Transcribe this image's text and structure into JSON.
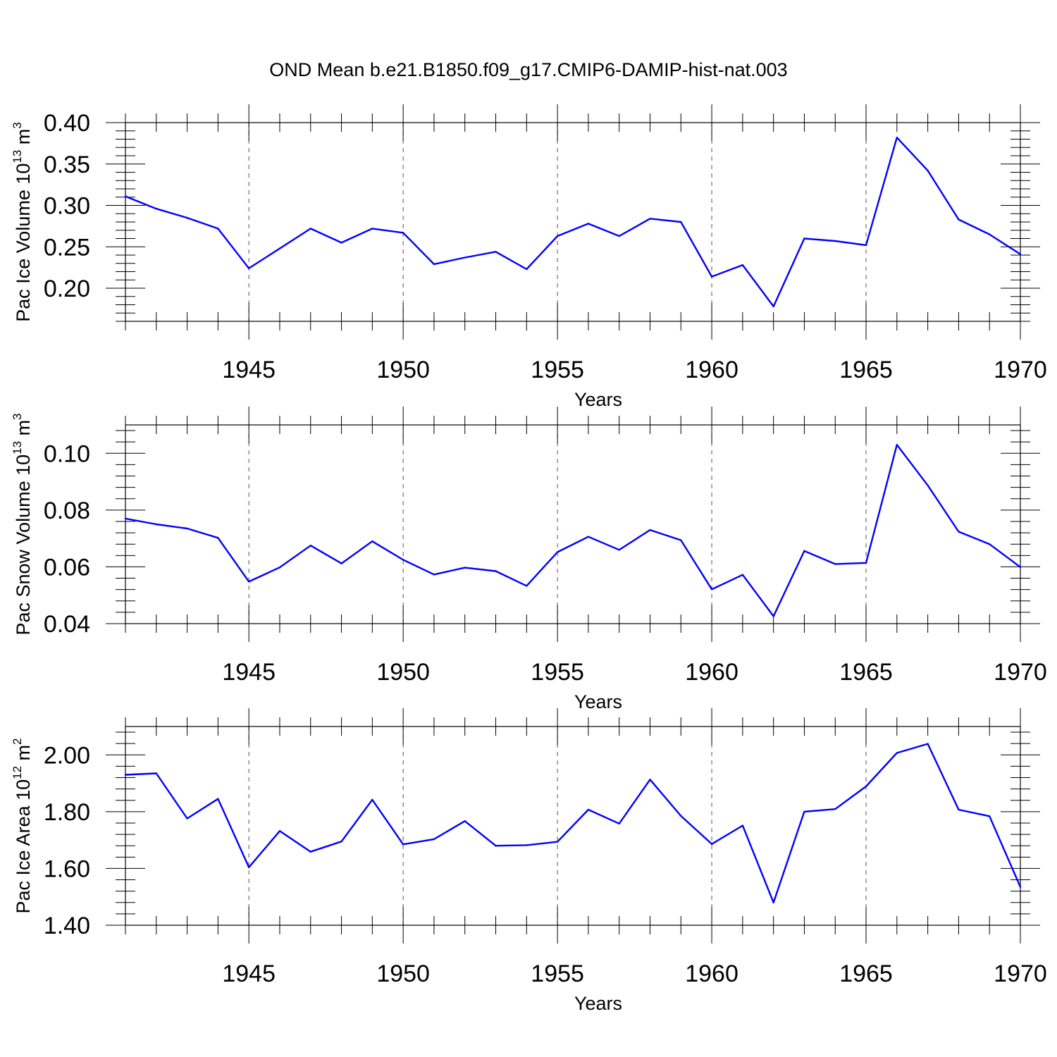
{
  "title": "OND Mean b.e21.B1850.f09_g17.CMIP6-DAMIP-hist-nat.003",
  "chart_data": [
    {
      "type": "line",
      "xlabel": "Years",
      "ylabel": {
        "text": "Pac Ice Volume 10",
        "exp": "13",
        "unit": " m",
        "unit_exp": "3"
      },
      "xlim": [
        1941,
        1970
      ],
      "ylim": [
        0.16,
        0.4
      ],
      "xticks": [
        1945,
        1950,
        1955,
        1960,
        1965,
        1970
      ],
      "yticks": [
        0.2,
        0.25,
        0.3,
        0.35,
        0.4
      ],
      "ytick_labels": [
        "0.20",
        "0.25",
        "0.30",
        "0.35",
        "0.40"
      ],
      "color": "#0000ff",
      "x": [
        1941,
        1942,
        1943,
        1944,
        1945,
        1946,
        1947,
        1948,
        1949,
        1950,
        1951,
        1952,
        1953,
        1954,
        1955,
        1956,
        1957,
        1958,
        1959,
        1960,
        1961,
        1962,
        1963,
        1964,
        1965,
        1966,
        1967,
        1968,
        1969,
        1970
      ],
      "values": [
        0.311,
        0.296,
        0.285,
        0.272,
        0.224,
        0.248,
        0.272,
        0.255,
        0.272,
        0.267,
        0.229,
        0.237,
        0.244,
        0.223,
        0.263,
        0.278,
        0.263,
        0.284,
        0.28,
        0.214,
        0.228,
        0.178,
        0.26,
        0.257,
        0.252,
        0.382,
        0.342,
        0.283,
        0.265,
        0.241
      ]
    },
    {
      "type": "line",
      "xlabel": "Years",
      "ylabel": {
        "text": "Pac Snow Volume 10",
        "exp": "13",
        "unit": " m",
        "unit_exp": "3"
      },
      "xlim": [
        1941,
        1970
      ],
      "ylim": [
        0.04,
        0.11
      ],
      "xticks": [
        1945,
        1950,
        1955,
        1960,
        1965,
        1970
      ],
      "yticks": [
        0.04,
        0.06,
        0.08,
        0.1
      ],
      "ytick_labels": [
        "0.04",
        "0.06",
        "0.08",
        "0.10"
      ],
      "color": "#0000ff",
      "x": [
        1941,
        1942,
        1943,
        1944,
        1945,
        1946,
        1947,
        1948,
        1949,
        1950,
        1951,
        1952,
        1953,
        1954,
        1955,
        1956,
        1957,
        1958,
        1959,
        1960,
        1961,
        1962,
        1963,
        1964,
        1965,
        1966,
        1967,
        1968,
        1969,
        1970
      ],
      "values": [
        0.077,
        0.075,
        0.0735,
        0.0702,
        0.0548,
        0.0598,
        0.0675,
        0.0612,
        0.069,
        0.0625,
        0.0573,
        0.0597,
        0.0585,
        0.0533,
        0.0652,
        0.0706,
        0.066,
        0.073,
        0.0694,
        0.0521,
        0.0572,
        0.0426,
        0.0656,
        0.061,
        0.0614,
        0.103,
        0.0887,
        0.0724,
        0.068,
        0.0599
      ]
    },
    {
      "type": "line",
      "xlabel": "Years",
      "ylabel": {
        "text": "Pac Ice Area 10",
        "exp": "12",
        "unit": " m",
        "unit_exp": "2"
      },
      "xlim": [
        1941,
        1970
      ],
      "ylim": [
        1.4,
        2.1
      ],
      "xticks": [
        1945,
        1950,
        1955,
        1960,
        1965,
        1970
      ],
      "yticks": [
        1.4,
        1.6,
        1.8,
        2.0
      ],
      "ytick_labels": [
        "1.40",
        "1.60",
        "1.80",
        "2.00"
      ],
      "color": "#0000ff",
      "x": [
        1941,
        1942,
        1943,
        1944,
        1945,
        1946,
        1947,
        1948,
        1949,
        1950,
        1951,
        1952,
        1953,
        1954,
        1955,
        1956,
        1957,
        1958,
        1959,
        1960,
        1961,
        1962,
        1963,
        1964,
        1965,
        1966,
        1967,
        1968,
        1969,
        1970
      ],
      "values": [
        1.93,
        1.935,
        1.776,
        1.845,
        1.604,
        1.732,
        1.659,
        1.695,
        1.842,
        1.685,
        1.703,
        1.767,
        1.68,
        1.682,
        1.694,
        1.807,
        1.758,
        1.913,
        1.785,
        1.686,
        1.751,
        1.48,
        1.8,
        1.809,
        1.889,
        2.007,
        2.039,
        1.807,
        1.784,
        1.535
      ]
    }
  ]
}
